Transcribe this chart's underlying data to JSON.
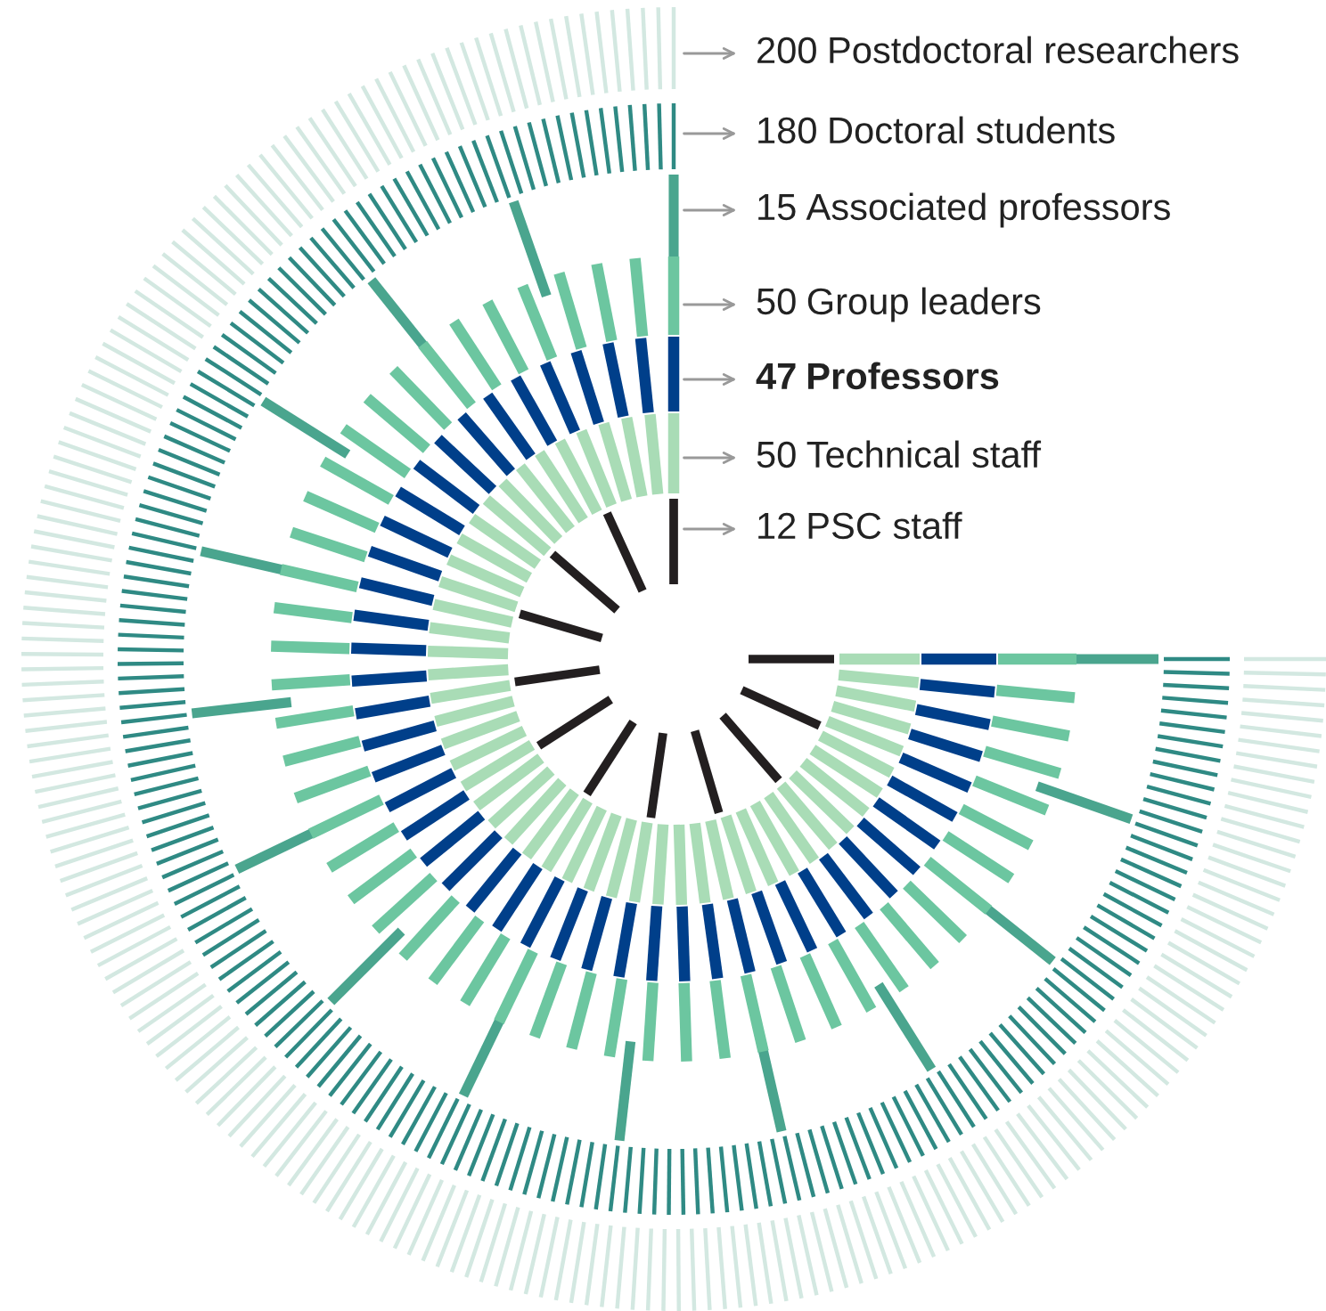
{
  "chart_data": {
    "type": "other",
    "categories": [
      "Postdoctoral researchers",
      "Doctoral students",
      "Associated professors",
      "Group leaders",
      "Professors",
      "Technical staff",
      "PSC staff"
    ],
    "values": [
      200,
      180,
      15,
      50,
      47,
      50,
      12
    ],
    "data_labels": true,
    "colors": [
      "#d3e8e1",
      "#2f8a84",
      "#4aa58e",
      "#6cc6a0",
      "#003f8a",
      "#a9dcb6",
      "#231f20"
    ]
  }
}
